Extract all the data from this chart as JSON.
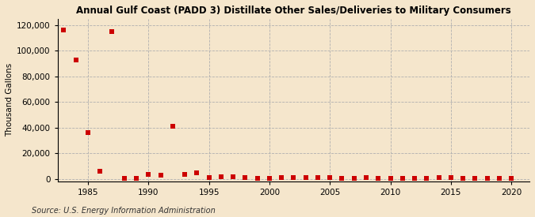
{
  "title": "Annual Gulf Coast (PADD 3) Distillate Other Sales/Deliveries to Military Consumers",
  "ylabel": "Thousand Gallons",
  "source": "Source: U.S. Energy Information Administration",
  "background_color": "#f5e6cc",
  "plot_background_color": "#f5e6cc",
  "marker_color": "#cc0000",
  "marker_size": 16,
  "xlim": [
    1982.5,
    2021.5
  ],
  "ylim": [
    -2000,
    125000
  ],
  "yticks": [
    0,
    20000,
    40000,
    60000,
    80000,
    100000,
    120000
  ],
  "xticks": [
    1985,
    1990,
    1995,
    2000,
    2005,
    2010,
    2015,
    2020
  ],
  "data": {
    "1983": 116000,
    "1984": 93000,
    "1985": 36000,
    "1986": 6000,
    "1987": 115000,
    "1988": 500,
    "1989": 500,
    "1990": 3500,
    "1991": 2500,
    "1992": 41000,
    "1993": 3500,
    "1994": 4500,
    "1995": 1200,
    "1996": 1800,
    "1997": 1500,
    "1998": 800,
    "1999": 500,
    "2000": 500,
    "2001": 700,
    "2002": 900,
    "2003": 1100,
    "2004": 700,
    "2005": 1200,
    "2006": 600,
    "2007": 500,
    "2008": 1200,
    "2009": 400,
    "2010": 600,
    "2011": 400,
    "2012": 500,
    "2013": 400,
    "2014": 700,
    "2015": 1200,
    "2016": 500,
    "2017": 400,
    "2018": 400,
    "2019": 300,
    "2020": 200
  }
}
